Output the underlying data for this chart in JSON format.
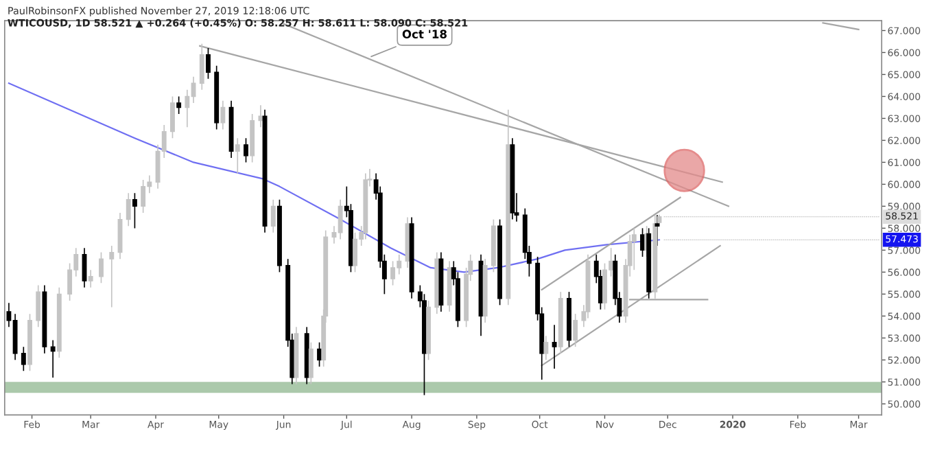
{
  "chart_data": {
    "type": "candlestick",
    "title": "PaulRobinsonFX published November 27, 2019 12:18:06 UTC",
    "subtitle": "WTICOUSD, 1D 58.521 ▲ +0.264 (+0.45%) O: 58.257 H: 58.611 L: 58.090 C: 58.521",
    "x": [
      "2019-01-21",
      "2019-01-24",
      "2019-01-28",
      "2019-01-31",
      "2019-02-04",
      "2019-02-07",
      "2019-02-11",
      "2019-02-14",
      "2019-02-19",
      "2019-02-22",
      "2019-02-26",
      "2019-03-01",
      "2019-03-06",
      "2019-03-11",
      "2019-03-15",
      "2019-03-19",
      "2019-03-22",
      "2019-03-26",
      "2019-03-29",
      "2019-04-02",
      "2019-04-05",
      "2019-04-09",
      "2019-04-12",
      "2019-04-16",
      "2019-04-19",
      "2019-04-23",
      "2019-04-26",
      "2019-04-30",
      "2019-05-03",
      "2019-05-07",
      "2019-05-10",
      "2019-05-14",
      "2019-05-17",
      "2019-05-21",
      "2019-05-23",
      "2019-05-27",
      "2019-05-30",
      "2019-06-03",
      "2019-06-05",
      "2019-06-07",
      "2019-06-12",
      "2019-06-14",
      "2019-06-18",
      "2019-06-20",
      "2019-06-21",
      "2019-06-25",
      "2019-06-28",
      "2019-07-01",
      "2019-07-03",
      "2019-07-05",
      "2019-07-08",
      "2019-07-10",
      "2019-07-12",
      "2019-07-15",
      "2019-07-17",
      "2019-07-19",
      "2019-07-23",
      "2019-07-26",
      "2019-07-30",
      "2019-08-01",
      "2019-08-05",
      "2019-08-07",
      "2019-08-09",
      "2019-08-13",
      "2019-08-15",
      "2019-08-19",
      "2019-08-21",
      "2019-08-23",
      "2019-08-27",
      "2019-08-29",
      "2019-09-03",
      "2019-09-05",
      "2019-09-09",
      "2019-09-12",
      "2019-09-16",
      "2019-09-18",
      "2019-09-20",
      "2019-09-24",
      "2019-09-26",
      "2019-09-30",
      "2019-10-02",
      "2019-10-04",
      "2019-10-08",
      "2019-10-11",
      "2019-10-15",
      "2019-10-18",
      "2019-10-22",
      "2019-10-24",
      "2019-10-28",
      "2019-10-30",
      "2019-11-01",
      "2019-11-04",
      "2019-11-06",
      "2019-11-08",
      "2019-11-11",
      "2019-11-13",
      "2019-11-15",
      "2019-11-19",
      "2019-11-21",
      "2019-11-22",
      "2019-11-25",
      "2019-11-26",
      "2019-11-27"
    ],
    "ohlc": [
      [
        54.2,
        54.6,
        53.5,
        53.8
      ],
      [
        53.8,
        54.1,
        52.0,
        52.3
      ],
      [
        52.3,
        52.6,
        51.5,
        51.8
      ],
      [
        51.8,
        54.1,
        51.5,
        53.8
      ],
      [
        53.8,
        55.4,
        53.5,
        55.1
      ],
      [
        55.1,
        55.4,
        52.3,
        52.6
      ],
      [
        52.6,
        52.9,
        51.2,
        52.4
      ],
      [
        52.4,
        55.3,
        52.1,
        55.0
      ],
      [
        55.0,
        56.4,
        54.7,
        56.1
      ],
      [
        56.1,
        57.1,
        55.8,
        56.8
      ],
      [
        56.8,
        57.1,
        55.3,
        55.6
      ],
      [
        55.6,
        56.1,
        55.3,
        55.8
      ],
      [
        55.8,
        56.9,
        55.5,
        56.6
      ],
      [
        56.6,
        57.2,
        54.4,
        56.9
      ],
      [
        56.9,
        58.7,
        56.6,
        58.4
      ],
      [
        58.4,
        59.6,
        58.1,
        59.3
      ],
      [
        59.3,
        59.6,
        58.0,
        59.0
      ],
      [
        59.0,
        60.2,
        58.7,
        59.9
      ],
      [
        59.9,
        60.4,
        59.6,
        60.1
      ],
      [
        60.1,
        61.8,
        59.8,
        61.5
      ],
      [
        61.5,
        62.7,
        61.2,
        62.4
      ],
      [
        62.4,
        64.0,
        62.1,
        63.7
      ],
      [
        63.7,
        64.0,
        63.2,
        63.5
      ],
      [
        63.5,
        64.3,
        62.6,
        64.0
      ],
      [
        64.0,
        64.9,
        63.7,
        64.6
      ],
      [
        64.6,
        66.4,
        64.3,
        65.9
      ],
      [
        65.9,
        66.2,
        64.8,
        65.1
      ],
      [
        65.1,
        65.4,
        62.5,
        62.8
      ],
      [
        62.8,
        63.8,
        62.5,
        63.5
      ],
      [
        63.5,
        63.8,
        61.2,
        61.5
      ],
      [
        61.5,
        62.1,
        60.5,
        61.8
      ],
      [
        61.8,
        62.1,
        61.0,
        61.3
      ],
      [
        61.3,
        63.2,
        61.0,
        62.9
      ],
      [
        62.9,
        63.6,
        62.6,
        63.1
      ],
      [
        63.1,
        63.4,
        57.8,
        58.1
      ],
      [
        58.1,
        59.3,
        57.8,
        59.0
      ],
      [
        59.0,
        59.3,
        56.0,
        56.3
      ],
      [
        56.3,
        56.6,
        52.6,
        52.9
      ],
      [
        52.9,
        53.2,
        50.9,
        51.2
      ],
      [
        51.2,
        53.5,
        50.9,
        53.2
      ],
      [
        53.2,
        53.5,
        50.9,
        51.2
      ],
      [
        51.2,
        52.8,
        50.9,
        52.5
      ],
      [
        52.5,
        52.8,
        51.7,
        52.0
      ],
      [
        52.0,
        54.3,
        51.7,
        54.0
      ],
      [
        54.0,
        57.9,
        53.7,
        57.6
      ],
      [
        57.6,
        58.1,
        57.3,
        57.8
      ],
      [
        57.8,
        59.3,
        57.5,
        59.0
      ],
      [
        59.0,
        59.9,
        58.5,
        58.8
      ],
      [
        58.8,
        59.1,
        56.0,
        56.3
      ],
      [
        56.3,
        57.8,
        56.0,
        57.5
      ],
      [
        57.5,
        58.1,
        57.2,
        57.8
      ],
      [
        57.8,
        60.5,
        57.5,
        60.2
      ],
      [
        60.2,
        60.7,
        59.9,
        60.2
      ],
      [
        60.2,
        60.5,
        59.3,
        59.6
      ],
      [
        59.6,
        59.9,
        56.2,
        56.5
      ],
      [
        56.5,
        56.8,
        55.0,
        55.7
      ],
      [
        55.7,
        56.5,
        55.4,
        56.2
      ],
      [
        56.2,
        56.8,
        55.9,
        56.5
      ],
      [
        56.5,
        58.5,
        56.2,
        58.2
      ],
      [
        58.2,
        58.5,
        54.8,
        55.1
      ],
      [
        55.1,
        55.4,
        54.4,
        54.7
      ],
      [
        54.7,
        55.0,
        50.4,
        52.3
      ],
      [
        52.3,
        54.7,
        52.0,
        54.4
      ],
      [
        54.4,
        56.9,
        54.1,
        56.6
      ],
      [
        56.6,
        56.9,
        54.2,
        54.5
      ],
      [
        54.5,
        56.5,
        54.2,
        56.2
      ],
      [
        56.2,
        56.5,
        55.4,
        55.7
      ],
      [
        55.7,
        56.0,
        53.5,
        53.8
      ],
      [
        53.8,
        56.2,
        53.5,
        55.9
      ],
      [
        55.9,
        56.8,
        55.6,
        56.5
      ],
      [
        56.5,
        56.8,
        53.1,
        54.0
      ],
      [
        54.0,
        56.6,
        53.7,
        56.3
      ],
      [
        56.3,
        58.4,
        56.0,
        58.1
      ],
      [
        58.1,
        58.4,
        54.5,
        54.8
      ],
      [
        54.8,
        63.4,
        54.5,
        61.8
      ],
      [
        61.8,
        62.1,
        58.4,
        58.7
      ],
      [
        58.7,
        59.6,
        58.3,
        58.6
      ],
      [
        58.6,
        58.9,
        56.6,
        56.9
      ],
      [
        56.9,
        57.2,
        55.8,
        56.4
      ],
      [
        56.4,
        56.7,
        53.8,
        54.1
      ],
      [
        54.1,
        54.4,
        51.1,
        52.3
      ],
      [
        52.3,
        53.1,
        52.0,
        52.8
      ],
      [
        52.8,
        53.6,
        51.6,
        52.6
      ],
      [
        52.6,
        55.1,
        52.3,
        54.8
      ],
      [
        54.8,
        55.1,
        52.6,
        52.9
      ],
      [
        52.9,
        54.1,
        52.6,
        53.8
      ],
      [
        53.8,
        54.5,
        53.5,
        54.2
      ],
      [
        54.2,
        56.8,
        53.9,
        56.5
      ],
      [
        56.5,
        56.8,
        55.5,
        55.8
      ],
      [
        55.8,
        56.1,
        54.3,
        54.6
      ],
      [
        54.6,
        56.4,
        54.3,
        56.1
      ],
      [
        56.1,
        57.1,
        55.8,
        56.5
      ],
      [
        56.5,
        56.8,
        54.5,
        54.8
      ],
      [
        54.8,
        55.1,
        53.7,
        54.0
      ],
      [
        54.0,
        56.6,
        53.7,
        56.3
      ],
      [
        56.3,
        57.7,
        55.8,
        57.4
      ],
      [
        57.4,
        58.0,
        56.1,
        57.7
      ],
      [
        57.7,
        58.0,
        56.7,
        57.0
      ],
      [
        57.0,
        58.1,
        56.7,
        57.75
      ],
      [
        57.75,
        58.0,
        54.8,
        55.1
      ],
      [
        55.1,
        58.6,
        54.8,
        58.2
      ],
      [
        58.2,
        58.6,
        57.2,
        58.1
      ],
      [
        58.257,
        58.611,
        58.09,
        58.521
      ]
    ],
    "colors": [
      "#000000",
      "#000000",
      "#000000",
      "#c4c4c4",
      "#c4c4c4",
      "#000000",
      "#000000",
      "#c4c4c4",
      "#c4c4c4",
      "#c4c4c4",
      "#000000",
      "#c4c4c4",
      "#c4c4c4",
      "#c4c4c4",
      "#c4c4c4",
      "#c4c4c4",
      "#000000",
      "#c4c4c4",
      "#c4c4c4",
      "#c4c4c4",
      "#c4c4c4",
      "#c4c4c4",
      "#000000",
      "#c4c4c4",
      "#c4c4c4",
      "#c4c4c4",
      "#000000",
      "#000000",
      "#c4c4c4",
      "#000000",
      "#c4c4c4",
      "#000000",
      "#c4c4c4",
      "#c4c4c4",
      "#000000",
      "#c4c4c4",
      "#000000",
      "#000000",
      "#000000",
      "#c4c4c4",
      "#000000",
      "#c4c4c4",
      "#000000",
      "#c4c4c4",
      "#c4c4c4",
      "#c4c4c4",
      "#c4c4c4",
      "#000000",
      "#000000",
      "#c4c4c4",
      "#c4c4c4",
      "#c4c4c4",
      "#c4c4c4",
      "#000000",
      "#000000",
      "#000000",
      "#c4c4c4",
      "#c4c4c4",
      "#c4c4c4",
      "#000000",
      "#000000",
      "#000000",
      "#c4c4c4",
      "#c4c4c4",
      "#000000",
      "#c4c4c4",
      "#000000",
      "#000000",
      "#c4c4c4",
      "#c4c4c4",
      "#000000",
      "#c4c4c4",
      "#c4c4c4",
      "#000000",
      "#c4c4c4",
      "#000000",
      "#000000",
      "#000000",
      "#000000",
      "#000000",
      "#000000",
      "#c4c4c4",
      "#000000",
      "#c4c4c4",
      "#000000",
      "#c4c4c4",
      "#c4c4c4",
      "#c4c4c4",
      "#000000",
      "#000000",
      "#c4c4c4",
      "#c4c4c4",
      "#000000",
      "#000000",
      "#c4c4c4",
      "#c4c4c4",
      "#c4c4c4",
      "#000000",
      "#c4c4c4",
      "#000000",
      "#c4c4c4",
      "#000000",
      "#c4c4c4"
    ],
    "series": [
      {
        "type": "line",
        "color": "#6f6ff2",
        "x": [
          "2019-01-21",
          "2019-03-22",
          "2019-04-19",
          "2019-05-22",
          "2019-05-30",
          "2019-06-28",
          "2019-07-22",
          "2019-08-10",
          "2019-08-26",
          "2019-09-11",
          "2019-09-30",
          "2019-10-13",
          "2019-11-02",
          "2019-11-27"
        ],
        "values": [
          64.6,
          62.1,
          61.0,
          60.25,
          59.9,
          58.4,
          57.1,
          56.2,
          56.0,
          56.2,
          56.6,
          57.0,
          57.25,
          57.47
        ]
      },
      {
        "type": "line",
        "color": "#a6a6a6",
        "x": [
          "2019-04-22",
          "2019-12-27"
        ],
        "values": [
          66.3,
          60.1
        ]
      },
      {
        "type": "line",
        "color": "#a6a6a6",
        "x": [
          "2019-06-01",
          "2019-12-30"
        ],
        "values": [
          67.3,
          59.0
        ]
      },
      {
        "type": "line",
        "color": "#a6a6a6",
        "x": [
          "2020-02-13",
          "2020-03-01"
        ],
        "values": [
          67.35,
          67.05
        ]
      },
      {
        "type": "line",
        "color": "#a6a6a6",
        "x": [
          "2019-10-02",
          "2019-12-07"
        ],
        "values": [
          55.2,
          59.4
        ]
      },
      {
        "type": "line",
        "color": "#a6a6a6",
        "x": [
          "2019-10-02",
          "2019-12-26"
        ],
        "values": [
          51.75,
          57.2
        ]
      },
      {
        "type": "line",
        "color": "#a6a6a6",
        "x": [
          "2019-11-13",
          "2019-12-20"
        ],
        "values": [
          54.75,
          54.75
        ]
      }
    ],
    "bands": [
      {
        "axis": "y",
        "from": 50.5,
        "to": 51.0,
        "color": "#abc9ab"
      }
    ],
    "annotations": [
      {
        "text": "Oct '18",
        "x": "2019-07-11",
        "y": 65.75
      },
      {
        "text": "58.521",
        "x": "2019-11-27",
        "y": 58.521
      },
      {
        "text": "57.473",
        "x": "2019-11-27",
        "y": 57.473
      }
    ],
    "xlim": [
      "2019-01-19",
      "2020-03-12"
    ],
    "xticks": [
      {
        "value": "2019-02-01",
        "label": "Feb"
      },
      {
        "value": "2019-03-01",
        "label": "Mar"
      },
      {
        "value": "2019-04-01",
        "label": "Apr"
      },
      {
        "value": "2019-05-01",
        "label": "May"
      },
      {
        "value": "2019-06-01",
        "label": "Jun"
      },
      {
        "value": "2019-07-01",
        "label": "Jul"
      },
      {
        "value": "2019-08-01",
        "label": "Aug"
      },
      {
        "value": "2019-09-01",
        "label": "Sep"
      },
      {
        "value": "2019-10-01",
        "label": "Oct"
      },
      {
        "value": "2019-11-01",
        "label": "Nov"
      },
      {
        "value": "2019-12-01",
        "label": "Dec"
      },
      {
        "value": "2020-01-01",
        "label": "2020"
      },
      {
        "value": "2020-02-01",
        "label": "Feb"
      },
      {
        "value": "2020-03-01",
        "label": "Mar"
      }
    ],
    "ylim": [
      49.5,
      67.45
    ],
    "yticks": [
      {
        "value": 50,
        "label": "50.000"
      },
      {
        "value": 51,
        "label": "51.000"
      },
      {
        "value": 52,
        "label": "52.000"
      },
      {
        "value": 53,
        "label": "53.000"
      },
      {
        "value": 54,
        "label": "54.000"
      },
      {
        "value": 55,
        "label": "55.000"
      },
      {
        "value": 56,
        "label": "56.000"
      },
      {
        "value": 57,
        "label": "57.000"
      },
      {
        "value": 58,
        "label": "58.000"
      },
      {
        "value": 59,
        "label": "59.000"
      },
      {
        "value": 60,
        "label": "60.000"
      },
      {
        "value": 61,
        "label": "61.000"
      },
      {
        "value": 62,
        "label": "62.000"
      },
      {
        "value": 63,
        "label": "63.000"
      },
      {
        "value": 64,
        "label": "64.000"
      },
      {
        "value": 65,
        "label": "65.000"
      },
      {
        "value": 66,
        "label": "66.000"
      },
      {
        "value": 67,
        "label": "67.000"
      }
    ],
    "grid": false
  }
}
